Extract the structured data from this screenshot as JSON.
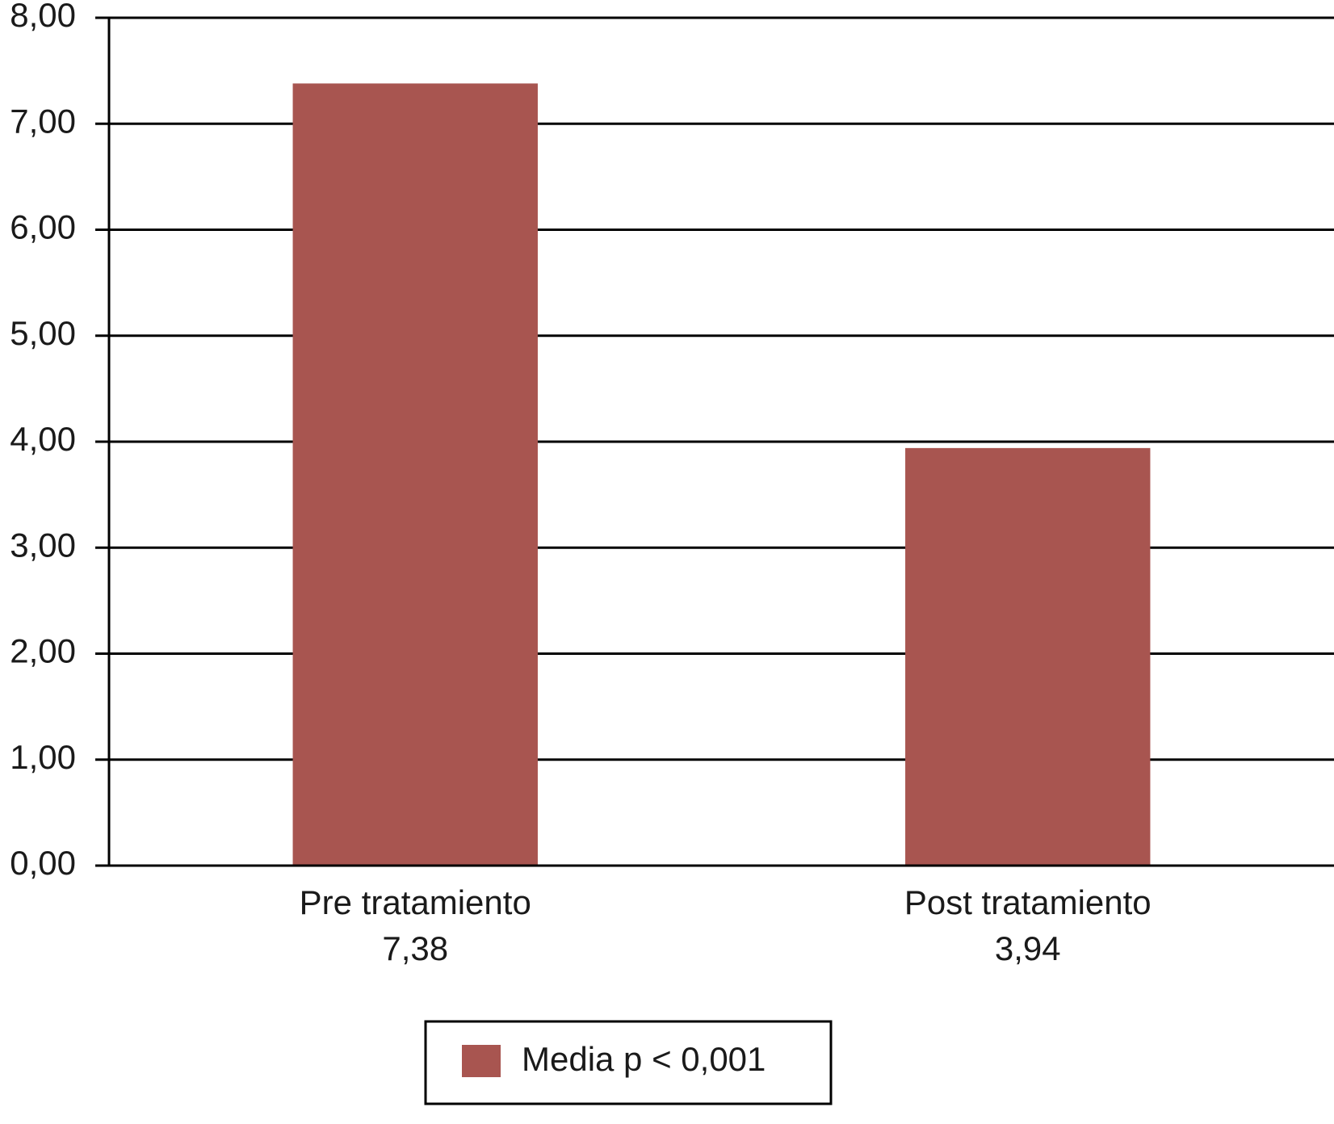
{
  "chart_data": {
    "type": "bar",
    "categories": [
      "Pre tratamiento",
      "Post tratamiento"
    ],
    "series": [
      {
        "name": "Media p < 0,001",
        "color": "#a85550",
        "values": [
          7.38,
          3.94
        ],
        "value_labels": [
          "7,38",
          "3,94"
        ]
      }
    ],
    "ylim": [
      0,
      8
    ],
    "yticks": [
      {
        "value": 0,
        "label": "0,00"
      },
      {
        "value": 1,
        "label": "1,00"
      },
      {
        "value": 2,
        "label": "2,00"
      },
      {
        "value": 3,
        "label": "3,00"
      },
      {
        "value": 4,
        "label": "4,00"
      },
      {
        "value": 5,
        "label": "5,00"
      },
      {
        "value": 6,
        "label": "6,00"
      },
      {
        "value": 7,
        "label": "7,00"
      },
      {
        "value": 8,
        "label": "8,00"
      }
    ],
    "grid": true
  }
}
